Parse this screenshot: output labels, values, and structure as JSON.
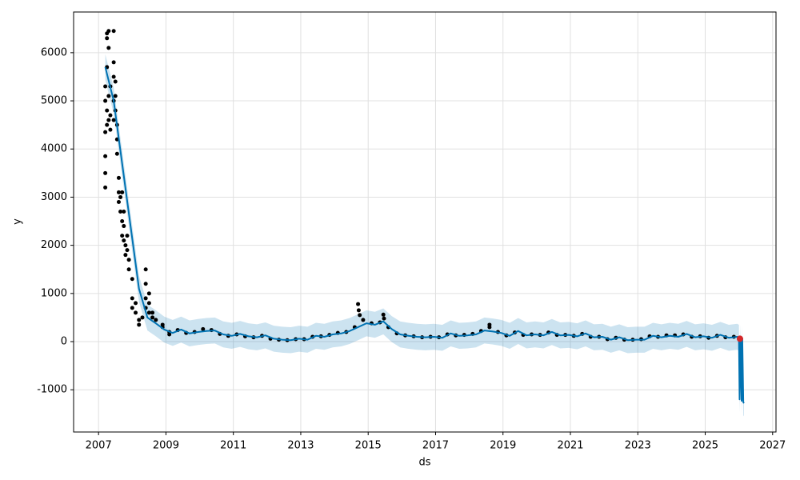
{
  "chart_data": {
    "type": "forecast",
    "x_label": "ds",
    "y_label": "y",
    "xlim": [
      2006.26,
      2027.1
    ],
    "ylim": [
      -1877,
      6845
    ],
    "xticks": [
      2007,
      2009,
      2011,
      2013,
      2015,
      2017,
      2019,
      2021,
      2023,
      2025,
      2027
    ],
    "yticks": [
      -1000,
      0,
      1000,
      2000,
      3000,
      4000,
      5000,
      6000
    ],
    "grid": true,
    "observed": {
      "color": "#000000",
      "x": [
        2007.2,
        2007.2,
        2007.2,
        2007.2,
        2007.2,
        2007.2,
        2007.25,
        2007.25,
        2007.25,
        2007.25,
        2007.25,
        2007.3,
        2007.3,
        2007.3,
        2007.3,
        2007.35,
        2007.35,
        2007.35,
        2007.45,
        2007.45,
        2007.45,
        2007.45,
        2007.45,
        2007.5,
        2007.5,
        2007.5,
        2007.55,
        2007.55,
        2007.55,
        2007.6,
        2007.6,
        2007.6,
        2007.65,
        2007.65,
        2007.7,
        2007.7,
        2007.7,
        2007.75,
        2007.75,
        2007.75,
        2007.8,
        2007.8,
        2007.85,
        2007.85,
        2007.9,
        2007.9,
        2008.0,
        2008.0,
        2008.0,
        2008.1,
        2008.1,
        2008.2,
        2008.2,
        2008.3,
        2008.4,
        2008.4,
        2008.4,
        2008.4,
        2008.5,
        2008.5,
        2008.5,
        2008.6,
        2008.6,
        2008.7,
        2008.9,
        2008.9,
        2009.1,
        2009.1,
        2009.35,
        2009.6,
        2009.85,
        2010.1,
        2010.35,
        2010.6,
        2010.85,
        2011.1,
        2011.35,
        2011.6,
        2011.85,
        2012.1,
        2012.35,
        2012.6,
        2012.85,
        2013.1,
        2013.35,
        2013.6,
        2013.85,
        2014.1,
        2014.35,
        2014.6,
        2014.85,
        2015.1,
        2015.35,
        2015.6,
        2015.85,
        2016.1,
        2016.35,
        2016.6,
        2016.85,
        2017.1,
        2017.35,
        2017.6,
        2017.85,
        2018.1,
        2018.35,
        2018.6,
        2018.85,
        2019.1,
        2019.35,
        2019.6,
        2019.85,
        2020.1,
        2020.35,
        2020.6,
        2020.85,
        2021.1,
        2021.35,
        2021.6,
        2021.85,
        2022.1,
        2022.35,
        2022.6,
        2022.85,
        2023.1,
        2023.35,
        2023.6,
        2023.85,
        2024.1,
        2024.35,
        2024.6,
        2024.85,
        2025.1,
        2025.35,
        2025.6,
        2025.85,
        2014.7,
        2014.72,
        2014.75,
        2015.45,
        2015.47,
        2018.6
      ],
      "values": [
        3200,
        3500,
        3850,
        4350,
        5000,
        5300,
        6400,
        6300,
        5700,
        4800,
        4500,
        6450,
        6100,
        5100,
        4600,
        5300,
        4700,
        4400,
        6450,
        5800,
        5500,
        5000,
        4600,
        5400,
        5100,
        4800,
        4500,
        4200,
        3900,
        3400,
        3100,
        2900,
        3000,
        2700,
        3100,
        2500,
        2200,
        2700,
        2400,
        2100,
        2000,
        1800,
        2200,
        1900,
        1700,
        1500,
        1300,
        900,
        700,
        600,
        800,
        450,
        350,
        500,
        1500,
        1200,
        900,
        700,
        1000,
        800,
        600,
        600,
        500,
        450,
        350,
        300,
        200,
        150,
        240,
        180,
        200,
        260,
        240,
        160,
        120,
        150,
        110,
        90,
        120,
        60,
        40,
        30,
        50,
        50,
        100,
        110,
        140,
        180,
        200,
        300,
        450,
        380,
        400,
        300,
        170,
        130,
        110,
        90,
        100,
        90,
        150,
        130,
        140,
        160,
        220,
        300,
        200,
        130,
        190,
        140,
        150,
        140,
        190,
        140,
        140,
        120,
        160,
        100,
        100,
        50,
        80,
        40,
        40,
        50,
        110,
        100,
        130,
        130,
        150,
        100,
        110,
        80,
        120,
        90,
        100,
        780,
        650,
        550,
        560,
        480,
        350
      ]
    },
    "forecast": {
      "color": "#0072b2",
      "x": [
        2007.2,
        2007.45,
        2007.7,
        2007.95,
        2008.2,
        2008.45,
        2008.7,
        2008.95,
        2009.2,
        2009.45,
        2009.7,
        2009.95,
        2010.2,
        2010.45,
        2010.7,
        2010.95,
        2011.2,
        2011.45,
        2011.7,
        2011.95,
        2012.2,
        2012.45,
        2012.7,
        2012.95,
        2013.2,
        2013.45,
        2013.7,
        2013.95,
        2014.2,
        2014.45,
        2014.7,
        2014.95,
        2015.2,
        2015.45,
        2015.7,
        2015.95,
        2016.2,
        2016.45,
        2016.7,
        2016.95,
        2017.2,
        2017.45,
        2017.7,
        2017.95,
        2018.2,
        2018.45,
        2018.7,
        2018.95,
        2019.2,
        2019.45,
        2019.7,
        2019.95,
        2020.2,
        2020.45,
        2020.7,
        2020.95,
        2021.2,
        2021.45,
        2021.7,
        2021.95,
        2022.2,
        2022.45,
        2022.7,
        2022.95,
        2023.2,
        2023.45,
        2023.7,
        2023.95,
        2024.2,
        2024.45,
        2024.7,
        2024.95,
        2025.2,
        2025.45,
        2025.7,
        2025.95,
        2026.0,
        2026.02,
        2026.05,
        2026.08,
        2026.1,
        2026.13,
        2026.15
      ],
      "values": [
        5700,
        5000,
        3700,
        2400,
        1100,
        500,
        380,
        250,
        180,
        250,
        170,
        200,
        220,
        230,
        150,
        120,
        160,
        110,
        90,
        130,
        60,
        40,
        30,
        60,
        40,
        120,
        100,
        150,
        170,
        220,
        300,
        380,
        350,
        420,
        260,
        150,
        120,
        100,
        90,
        100,
        80,
        170,
        120,
        130,
        150,
        230,
        210,
        180,
        120,
        220,
        130,
        150,
        130,
        200,
        130,
        140,
        110,
        170,
        90,
        100,
        40,
        90,
        30,
        40,
        40,
        120,
        90,
        120,
        100,
        160,
        90,
        110,
        80,
        140,
        80,
        100,
        80,
        -1200,
        90,
        -1230,
        70,
        -1260,
        -1280
      ],
      "lower": [
        5430,
        4730,
        3430,
        2130,
        830,
        230,
        110,
        -20,
        -90,
        -20,
        -100,
        -70,
        -50,
        -40,
        -120,
        -150,
        -110,
        -160,
        -180,
        -140,
        -210,
        -230,
        -240,
        -210,
        -230,
        -150,
        -170,
        -120,
        -100,
        -50,
        30,
        110,
        80,
        150,
        -10,
        -120,
        -150,
        -170,
        -180,
        -170,
        -190,
        -100,
        -150,
        -140,
        -120,
        -40,
        -60,
        -90,
        -150,
        -50,
        -140,
        -120,
        -140,
        -70,
        -140,
        -130,
        -160,
        -100,
        -180,
        -170,
        -230,
        -180,
        -240,
        -230,
        -230,
        -150,
        -180,
        -150,
        -170,
        -110,
        -180,
        -160,
        -190,
        -130,
        -190,
        -170,
        -190,
        -1470,
        -180,
        -1500,
        -200,
        -1530,
        -1550
      ],
      "upper": [
        5970,
        5270,
        3970,
        2670,
        1370,
        770,
        650,
        520,
        450,
        520,
        440,
        470,
        490,
        500,
        420,
        390,
        430,
        380,
        360,
        400,
        330,
        310,
        300,
        330,
        310,
        390,
        370,
        420,
        440,
        490,
        570,
        650,
        620,
        690,
        530,
        420,
        390,
        370,
        360,
        370,
        350,
        440,
        390,
        400,
        420,
        500,
        480,
        450,
        390,
        490,
        400,
        420,
        400,
        470,
        400,
        410,
        380,
        440,
        360,
        370,
        310,
        360,
        300,
        310,
        310,
        390,
        360,
        390,
        370,
        430,
        360,
        380,
        350,
        410,
        350,
        370,
        350,
        -930,
        360,
        -960,
        340,
        -990,
        -1010
      ]
    },
    "highlight": {
      "color": "#d62728",
      "x": [
        2026.03
      ],
      "values": [
        60
      ]
    }
  }
}
